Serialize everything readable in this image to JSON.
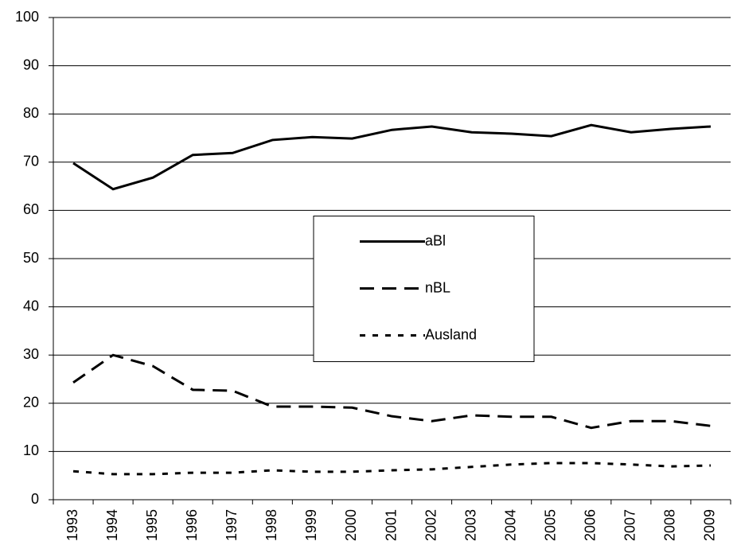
{
  "chart_data": {
    "type": "line",
    "categories": [
      "1993",
      "1994",
      "1995",
      "1996",
      "1997",
      "1998",
      "1999",
      "2000",
      "2001",
      "2002",
      "2003",
      "2004",
      "2005",
      "2006",
      "2007",
      "2008",
      "2009"
    ],
    "series": [
      {
        "name": "aBl",
        "color": "#000000",
        "style": "solid",
        "values": [
          69.8,
          64.4,
          66.8,
          71.5,
          71.9,
          74.6,
          75.2,
          74.9,
          76.7,
          77.4,
          76.2,
          75.9,
          75.4,
          77.7,
          76.2,
          76.9,
          77.4
        ]
      },
      {
        "name": "nBL",
        "color": "#000000",
        "style": "dashed",
        "values": [
          24.3,
          30.0,
          27.7,
          22.8,
          22.6,
          19.3,
          19.3,
          19.1,
          17.3,
          16.3,
          17.5,
          17.2,
          17.2,
          14.9,
          16.3,
          16.3,
          15.3
        ]
      },
      {
        "name": "Ausland",
        "color": "#000000",
        "style": "dotted",
        "values": [
          5.9,
          5.3,
          5.3,
          5.6,
          5.6,
          6.1,
          5.8,
          5.8,
          6.1,
          6.3,
          6.8,
          7.3,
          7.6,
          7.6,
          7.3,
          6.9,
          7.1
        ]
      }
    ],
    "ylim": [
      0,
      100
    ],
    "yticks": [
      0,
      10,
      20,
      30,
      40,
      50,
      60,
      70,
      80,
      90,
      100
    ],
    "grid": true,
    "legend": "center"
  }
}
